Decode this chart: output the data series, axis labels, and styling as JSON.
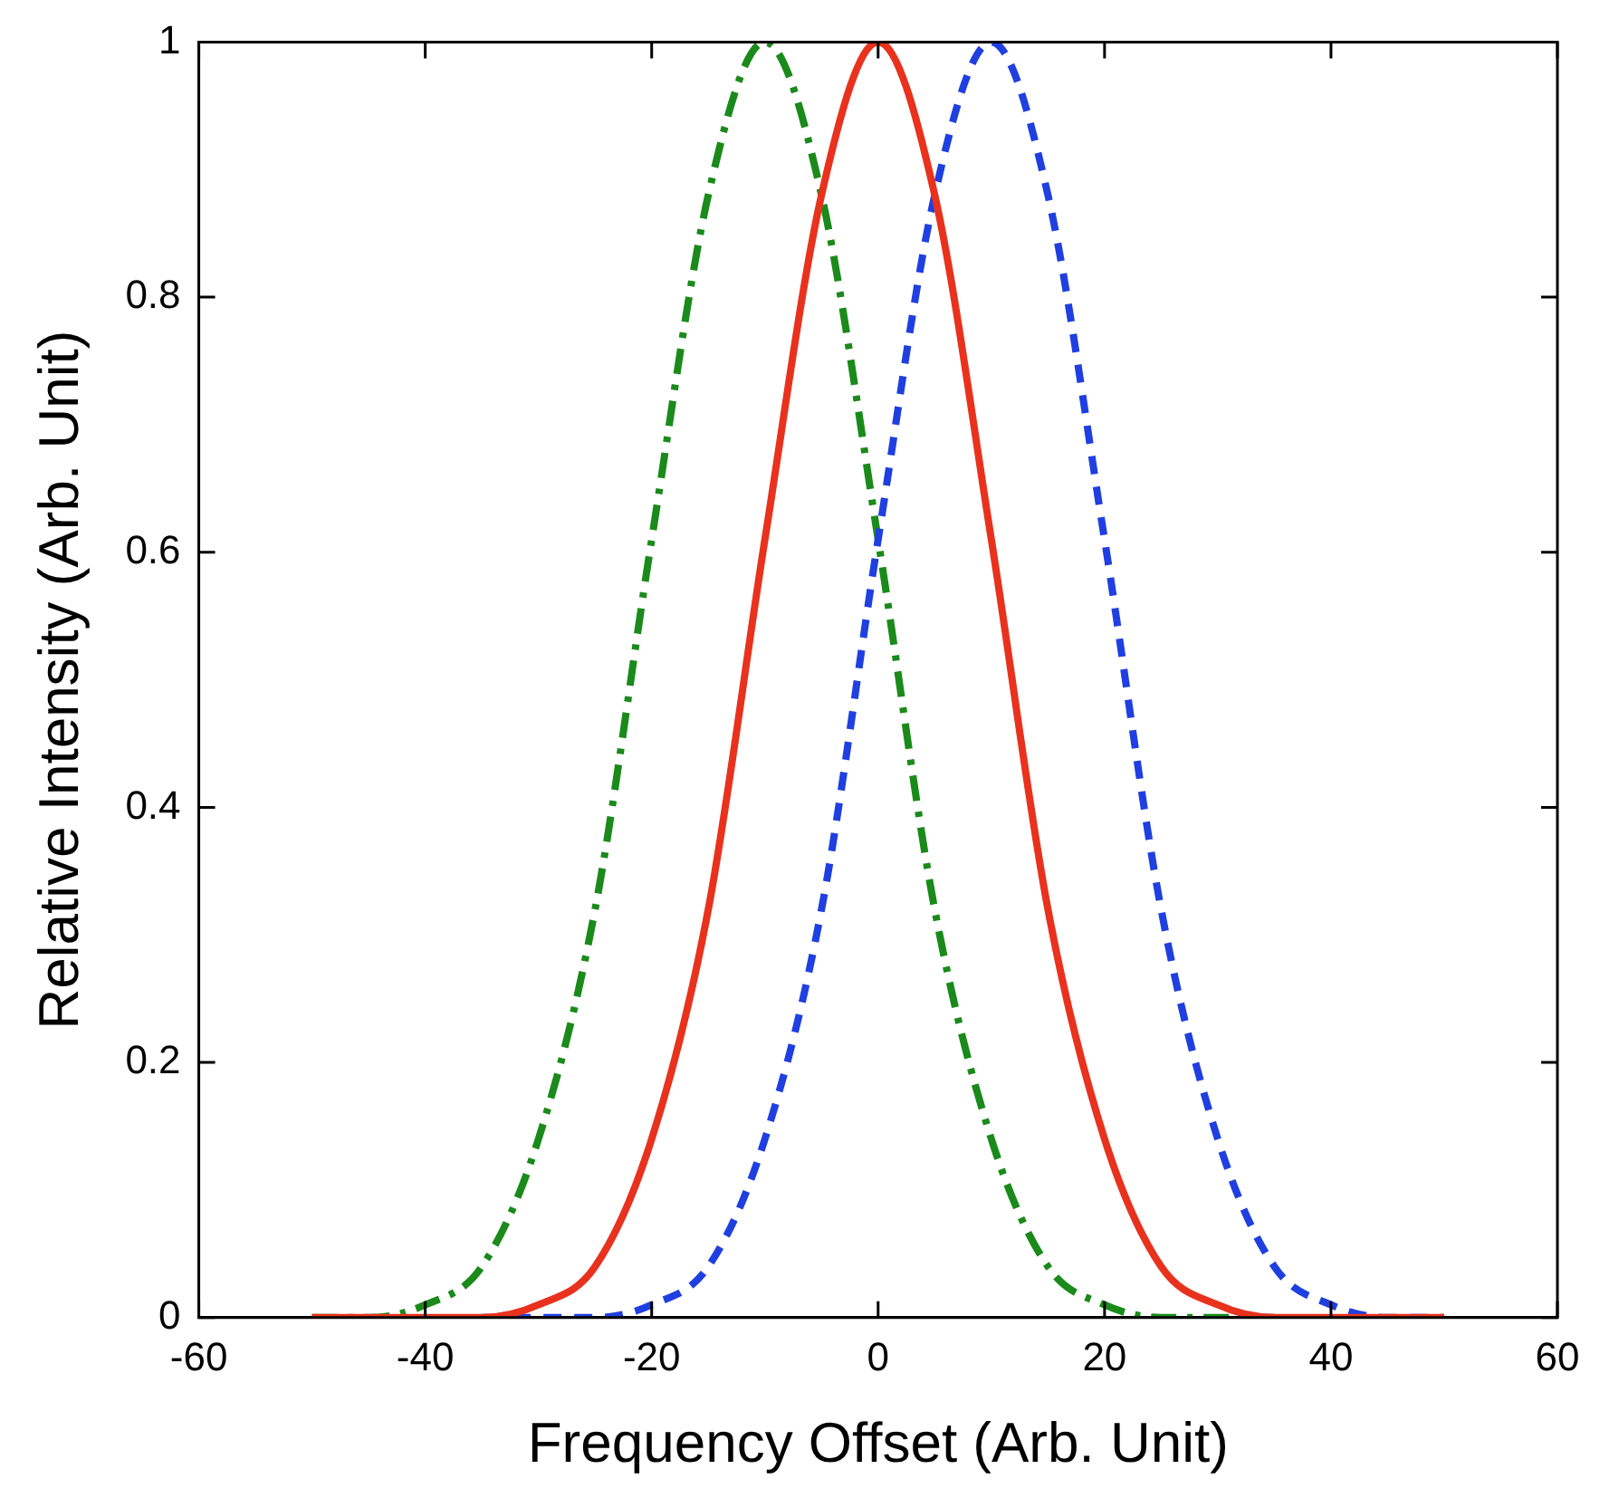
{
  "chart_data": {
    "type": "line",
    "xlabel": "Frequency Offset (Arb. Unit)",
    "ylabel": "Relative Intensity (Arb. Unit)",
    "x": [
      -50,
      -45,
      -40,
      -35,
      -30,
      -25,
      -20,
      -15,
      -10,
      -5,
      0,
      5,
      10,
      15,
      20,
      25,
      30,
      35,
      40,
      45,
      50
    ],
    "series": [
      {
        "color": "#e8321e",
        "line_style": "solid",
        "values": [
          0,
          0,
          0,
          0,
          0.01,
          0.04,
          0.14,
          0.32,
          0.61,
          0.88,
          1,
          0.88,
          0.61,
          0.32,
          0.14,
          0.04,
          0.01,
          0,
          0,
          0,
          0
        ]
      },
      {
        "color": "#1f3fe0",
        "line_style": "dashed",
        "values": [
          null,
          null,
          null,
          0,
          0,
          0,
          0.01,
          0.04,
          0.14,
          0.32,
          0.61,
          0.88,
          1,
          0.88,
          0.61,
          0.32,
          0.14,
          0.04,
          0.01,
          0,
          0
        ]
      },
      {
        "color": "#1a8a1a",
        "line_style": "dashdot",
        "values": [
          0,
          0,
          0.01,
          0.04,
          0.14,
          0.32,
          0.61,
          0.88,
          1,
          0.88,
          0.61,
          0.32,
          0.14,
          0.04,
          0.01,
          0,
          0,
          0,
          null,
          null,
          null
        ]
      }
    ],
    "xlim": [
      -60,
      60
    ],
    "xticks": [
      -60,
      -40,
      -20,
      0,
      20,
      40,
      60
    ],
    "ylim": [
      0,
      1
    ],
    "yticks": [
      0,
      0.2,
      0.4,
      0.6,
      0.8,
      1
    ],
    "grid": false,
    "legend": false,
    "marker": "none"
  }
}
